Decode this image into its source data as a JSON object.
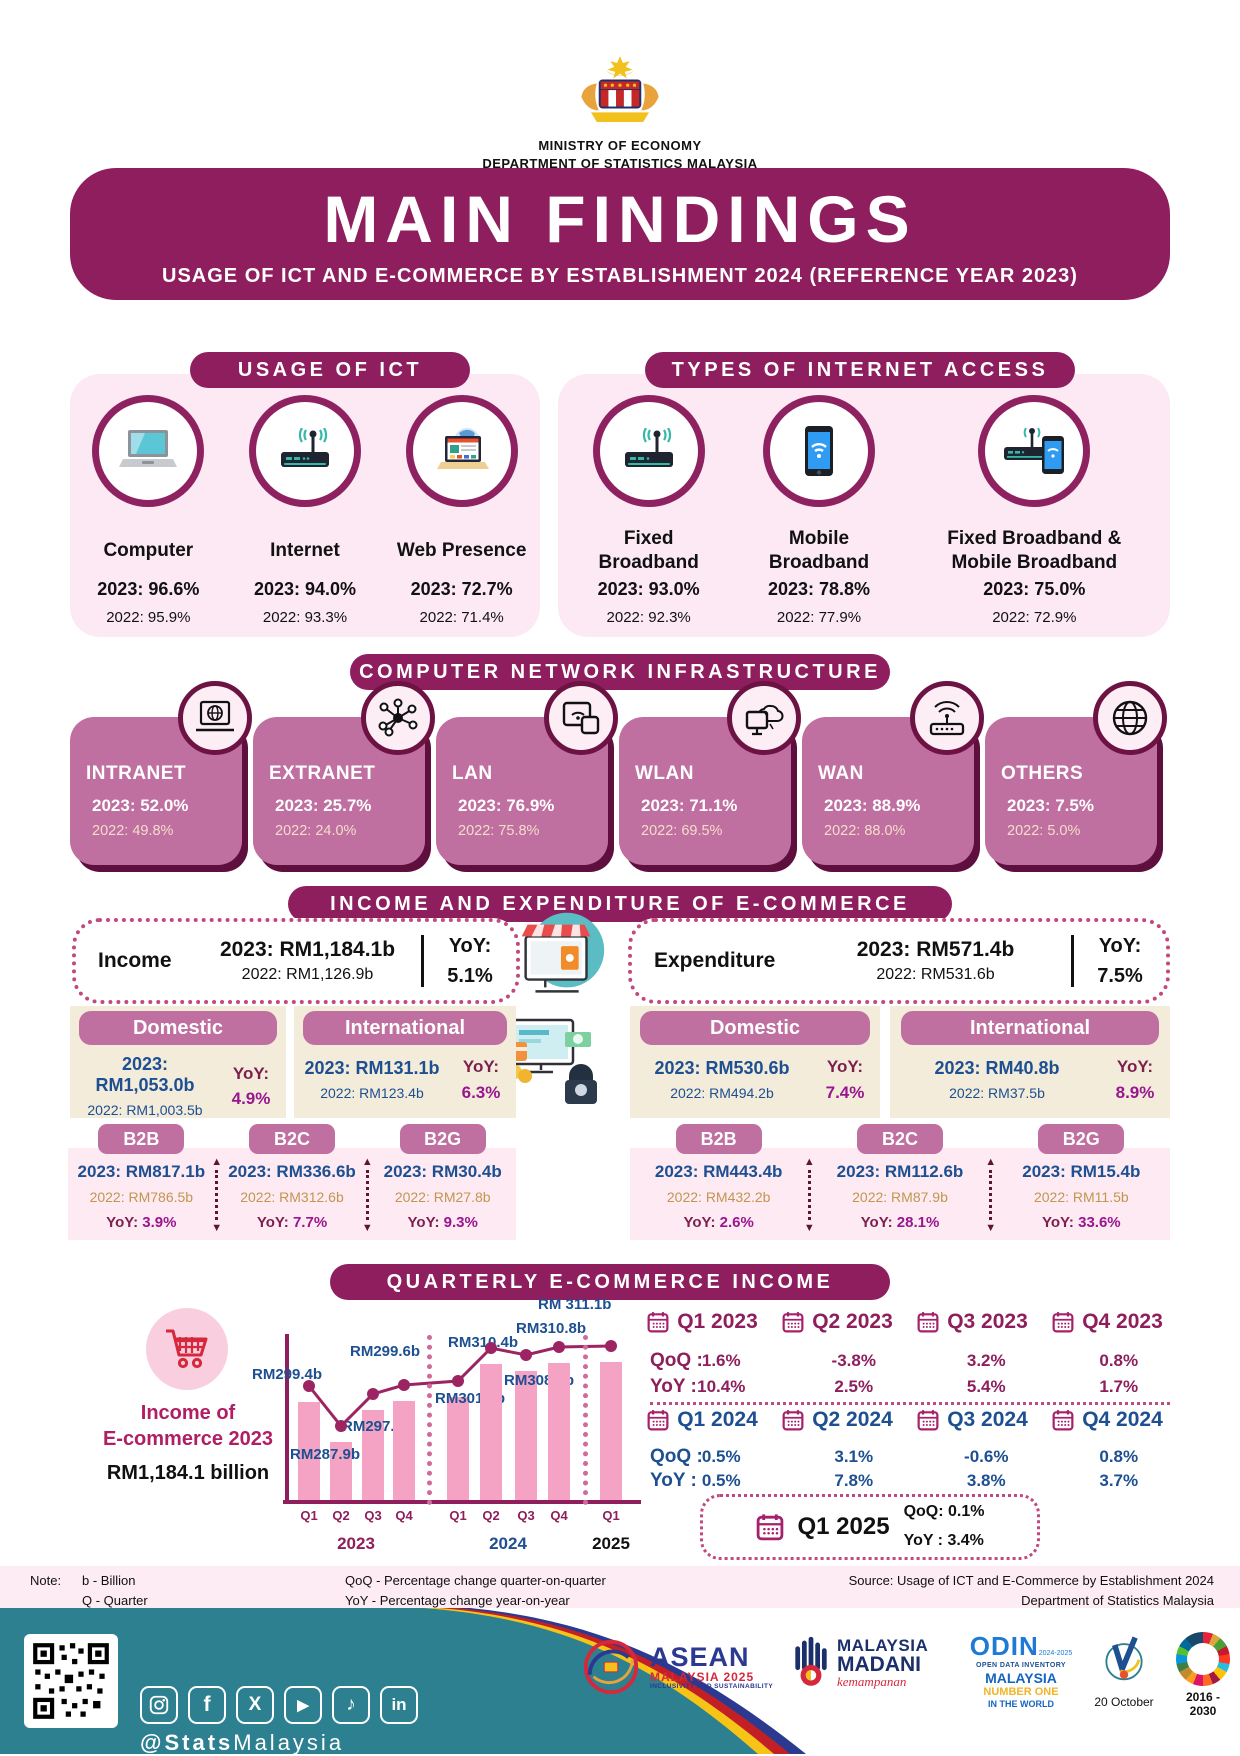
{
  "colors": {
    "primary": "#8e1e5e",
    "panel_pink": "#fce9f3",
    "card_mauve": "#bf6fa0",
    "card_edge": "#5f0f3d",
    "navy": "#1d4f91",
    "purple": "#99168e",
    "tan": "#c2964f",
    "beige": "#f3ecdb",
    "light_pink": "#fdeaf3",
    "bar_pink": "#f5a3c4",
    "line_maroon": "#9c2462",
    "footer_teal": "#2d808f"
  },
  "header": {
    "ministry": "MINISTRY OF ECONOMY",
    "department": "DEPARTMENT OF STATISTICS MALAYSIA",
    "title": "MAIN FINDINGS",
    "subtitle": "USAGE OF ICT AND E-COMMERCE BY ESTABLISHMENT 2024 (REFERENCE YEAR 2023)"
  },
  "usage_of_ict": {
    "title": "USAGE OF ICT",
    "items": [
      {
        "label": "Computer",
        "icon": "laptop-icon",
        "value_2023": "2023: 96.6%",
        "value_2022": "2022: 95.9%"
      },
      {
        "label": "Internet",
        "icon": "router-icon",
        "value_2023": "2023: 94.0%",
        "value_2022": "2022: 93.3%"
      },
      {
        "label": "Web Presence",
        "icon": "web-laptop-icon",
        "value_2023": "2023: 72.7%",
        "value_2022": "2022: 71.4%"
      }
    ]
  },
  "internet_access": {
    "title": "TYPES OF INTERNET ACCESS",
    "items": [
      {
        "label": "Fixed Broadband",
        "icon": "router-icon",
        "value_2023": "2023: 93.0%",
        "value_2022": "2022: 92.3%"
      },
      {
        "label": "Mobile Broadband",
        "icon": "smartphone-wifi-icon",
        "value_2023": "2023: 78.8%",
        "value_2022": "2022: 77.9%"
      },
      {
        "label": "Fixed Broadband & Mobile Broadband",
        "icon": "router-smartphone-icon",
        "value_2023": "2023: 75.0%",
        "value_2022": "2022: 72.9%"
      }
    ]
  },
  "network": {
    "title": "COMPUTER NETWORK INFRASTRUCTURE",
    "items": [
      {
        "label": "INTRANET",
        "icon": "laptop-globe-icon",
        "value_2023": "2023: 52.0%",
        "value_2022": "2022: 49.8%"
      },
      {
        "label": "EXTRANET",
        "icon": "network-nodes-icon",
        "value_2023": "2023: 25.7%",
        "value_2022": "2022: 24.0%"
      },
      {
        "label": "LAN",
        "icon": "devices-wifi-icon",
        "value_2023": "2023: 76.9%",
        "value_2022": "2022: 75.8%"
      },
      {
        "label": "WLAN",
        "icon": "monitor-cloud-icon",
        "value_2023": "2023: 71.1%",
        "value_2022": "2022: 69.5%"
      },
      {
        "label": "WAN",
        "icon": "router-signal-icon",
        "value_2023": "2023: 88.9%",
        "value_2022": "2022: 88.0%"
      },
      {
        "label": "OTHERS",
        "icon": "globe-icon",
        "value_2023": "2023: 7.5%",
        "value_2022": "2022: 5.0%"
      }
    ]
  },
  "ecom": {
    "title": "INCOME AND EXPENDITURE OF E-COMMERCE",
    "income": {
      "title": "Income",
      "value_2023": "2023: RM1,184.1b",
      "value_2022": "2022: RM1,126.9b",
      "yoy_label": "YoY:",
      "yoy_value": "5.1%",
      "domestic": {
        "title": "Domestic",
        "value_2023": "2023: RM1,053.0b",
        "value_2022": "2022: RM1,003.5b",
        "yoy_label": "YoY:",
        "yoy_value": "4.9%"
      },
      "international": {
        "title": "International",
        "value_2023": "2023: RM131.1b",
        "value_2022": "2022: RM123.4b",
        "yoy_label": "YoY:",
        "yoy_value": "6.3%"
      },
      "segments": [
        {
          "title": "B2B",
          "value_2023": "2023: RM817.1b",
          "value_2022": "2022: RM786.5b",
          "yoy_label": "YoY:",
          "yoy_value": "3.9%"
        },
        {
          "title": "B2C",
          "value_2023": "2023: RM336.6b",
          "value_2022": "2022: RM312.6b",
          "yoy_label": "YoY:",
          "yoy_value": "7.7%"
        },
        {
          "title": "B2G",
          "value_2023": "2023: RM30.4b",
          "value_2022": "2022: RM27.8b",
          "yoy_label": "YoY:",
          "yoy_value": "9.3%"
        }
      ]
    },
    "expenditure": {
      "title": "Expenditure",
      "value_2023": "2023: RM571.4b",
      "value_2022": "2022: RM531.6b",
      "yoy_label": "YoY:",
      "yoy_value": "7.5%",
      "domestic": {
        "title": "Domestic",
        "value_2023": "2023: RM530.6b",
        "value_2022": "2022: RM494.2b",
        "yoy_label": "YoY:",
        "yoy_value": "7.4%"
      },
      "international": {
        "title": "International",
        "value_2023": "2023: RM40.8b",
        "value_2022": "2022: RM37.5b",
        "yoy_label": "YoY:",
        "yoy_value": "8.9%"
      },
      "segments": [
        {
          "title": "B2B",
          "value_2023": "2023: RM443.4b",
          "value_2022": "2022: RM432.2b",
          "yoy_label": "YoY:",
          "yoy_value": "2.6%"
        },
        {
          "title": "B2C",
          "value_2023": "2023: RM112.6b",
          "value_2022": "2022: RM87.9b",
          "yoy_label": "YoY:",
          "yoy_value": "28.1%"
        },
        {
          "title": "B2G",
          "value_2023": "2023: RM15.4b",
          "value_2022": "2022: RM11.5b",
          "yoy_label": "YoY:",
          "yoy_value": "33.6%"
        }
      ]
    }
  },
  "quarterly": {
    "title": "QUARTERLY E-COMMERCE INCOME",
    "caption_line1": "Income of",
    "caption_line2": "E-commerce 2023",
    "total": "RM1,184.1 billion",
    "row_label_qoq": "QoQ :",
    "row_label_yoy": "YoY :",
    "q2023": [
      {
        "label": "Q1 2023",
        "qoq": "1.6%",
        "yoy": "10.4%"
      },
      {
        "label": "Q2 2023",
        "qoq": "-3.8%",
        "yoy": "2.5%"
      },
      {
        "label": "Q3 2023",
        "qoq": "3.2%",
        "yoy": "5.4%"
      },
      {
        "label": "Q4 2023",
        "qoq": "0.8%",
        "yoy": "1.7%"
      }
    ],
    "q2024": [
      {
        "label": "Q1 2024",
        "qoq": "0.5%",
        "yoy": "0.5%"
      },
      {
        "label": "Q2 2024",
        "qoq": "3.1%",
        "yoy": "7.8%"
      },
      {
        "label": "Q3 2024",
        "qoq": "-0.6%",
        "yoy": "3.8%"
      },
      {
        "label": "Q4 2024",
        "qoq": "0.8%",
        "yoy": "3.7%"
      }
    ],
    "q2025": {
      "label": "Q1 2025",
      "qoq": "QoQ: 0.1%",
      "yoy": "YoY : 3.4%"
    }
  },
  "chart_data": {
    "type": "bar",
    "title": "QUARTERLY E-COMMERCE INCOME",
    "categories": [
      "Q1 2023",
      "Q2 2023",
      "Q3 2023",
      "Q4 2023",
      "Q1 2024",
      "Q2 2024",
      "Q3 2024",
      "Q4 2024",
      "Q1 2025"
    ],
    "x_tick_labels": [
      "Q1",
      "Q2",
      "Q3",
      "Q4",
      "Q1",
      "Q2",
      "Q3",
      "Q4",
      "Q1"
    ],
    "group_labels": [
      "2023",
      "2024",
      "2025"
    ],
    "values_rm_billion": [
      299.4,
      287.9,
      297.1,
      299.6,
      301.0,
      310.4,
      308.5,
      310.8,
      311.1
    ],
    "point_labels": [
      "RM299.4b",
      "RM287.9b",
      "RM297.1b",
      "RM299.6b",
      "RM301.0b",
      "RM310.4b",
      "RM308.5b",
      "RM310.8b",
      "RM 311.1b"
    ],
    "ylim": [
      271,
      320
    ],
    "grid": false,
    "bar_color": "#f5a3c4",
    "line_color": "#9c2462"
  },
  "footer": {
    "note_label": "Note:",
    "note1": "b - Billion",
    "note2": "Q - Quarter",
    "def1": "QoQ - Percentage change quarter-on-quarter",
    "def2": "YoY  - Percentage change year-on-year",
    "source1": "Source: Usage of ICT and E-Commerce by Establishment 2024",
    "source2": "Department of Statistics Malaysia",
    "handle_bold": "@Stats",
    "handle_rest": "Malaysia",
    "social_icons": [
      "instagram-icon",
      "facebook-icon",
      "x-icon",
      "youtube-icon",
      "tiktok-icon",
      "linkedin-icon"
    ],
    "logos": {
      "asean_line1": "ASEAN",
      "asean_line2": "MALAYSIA 2025",
      "asean_line3": "INCLUSIVITY AND SUSTAINABILITY",
      "madani_line1": "MALAYSIA",
      "madani_line2": "MADANI",
      "madani_line3": "kemampanan",
      "odin_line1": "ODIN",
      "odin_badge": "2024-2025",
      "odin_line2": "OPEN DATA INVENTORY",
      "odin_line3": "MALAYSIA",
      "odin_line4": "NUMBER ONE",
      "odin_line5": "IN THE WORLD",
      "oct_label": "20 October",
      "sdg_label": "2016 - 2030"
    }
  }
}
